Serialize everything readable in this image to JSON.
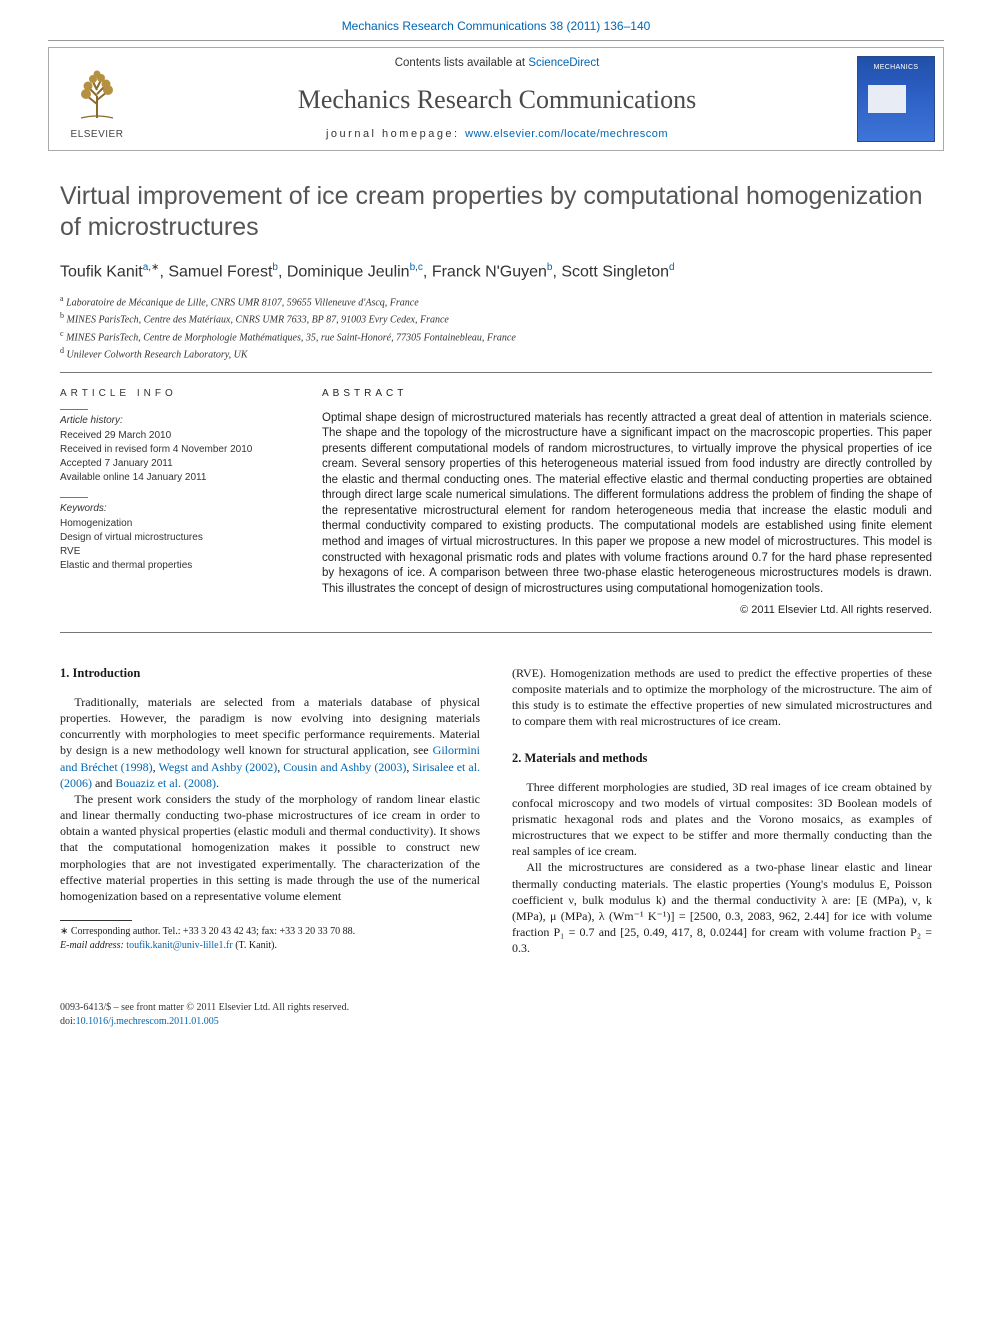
{
  "header": {
    "citation_link_text": "Mechanics Research Communications 38 (2011) 136–140",
    "contents_prefix": "Contents lists available at ",
    "contents_link": "ScienceDirect",
    "journal_name": "Mechanics Research Communications",
    "homepage_prefix": "journal homepage: ",
    "homepage_link": "www.elsevier.com/locate/mechrescom",
    "publisher_name": "ELSEVIER"
  },
  "article": {
    "title": "Virtual improvement of ice cream properties by computational homogenization of microstructures",
    "authors_html": "Toufik Kanit<sup><a>a</a>,∗</sup>, Samuel Forest<sup><a>b</a></sup>, Dominique Jeulin<sup><a>b</a>,<a>c</a></sup>, Franck N'Guyen<sup><a>b</a></sup>, Scott Singleton<sup><a>d</a></sup>",
    "affiliations": [
      {
        "sup": "a",
        "text": "Laboratoire de Mécanique de Lille, CNRS UMR 8107, 59655 Villeneuve d'Ascq, France"
      },
      {
        "sup": "b",
        "text": "MINES ParisTech, Centre des Matériaux, CNRS UMR 7633, BP 87, 91003 Evry Cedex, France"
      },
      {
        "sup": "c",
        "text": "MINES ParisTech, Centre de Morphologie Mathématiques, 35, rue Saint-Honoré, 77305 Fontainebleau, France"
      },
      {
        "sup": "d",
        "text": "Unilever Colworth Research Laboratory, UK"
      }
    ]
  },
  "info": {
    "head": "article info",
    "history_head": "Article history:",
    "history": [
      "Received 29 March 2010",
      "Received in revised form 4 November 2010",
      "Accepted 7 January 2011",
      "Available online 14 January 2011"
    ],
    "keywords_head": "Keywords:",
    "keywords": [
      "Homogenization",
      "Design of virtual microstructures",
      "RVE",
      "Elastic and thermal properties"
    ]
  },
  "abstract": {
    "head": "abstract",
    "text": "Optimal shape design of microstructured materials has recently attracted a great deal of attention in materials science. The shape and the topology of the microstructure have a significant impact on the macroscopic properties. This paper presents different computational models of random microstructures, to virtually improve the physical properties of ice cream. Several sensory properties of this heterogeneous material issued from food industry are directly controlled by the elastic and thermal conducting ones. The material effective elastic and thermal conducting properties are obtained through direct large scale numerical simulations. The different formulations address the problem of finding the shape of the representative microstructural element for random heterogeneous media that increase the elastic moduli and thermal conductivity compared to existing products. The computational models are established using finite element method and images of virtual microstructures. In this paper we propose a new model of microstructures. This model is constructed with hexagonal prismatic rods and plates with volume fractions around 0.7 for the hard phase represented by hexagons of ice. A comparison between three two-phase elastic heterogeneous microstructures models is drawn. This illustrates the concept of design of microstructures using computational homogenization tools.",
    "copyright": "© 2011 Elsevier Ltd. All rights reserved."
  },
  "body": {
    "left": {
      "sec1_head": "1. Introduction",
      "sec1_p1_pre": "Traditionally, materials are selected from a materials database of physical properties. However, the paradigm is now evolving into designing materials concurrently with morphologies to meet specific performance requirements. Material by design is a new methodology well known for structural application, see ",
      "sec1_p1_links": [
        "Gilormini and Bréchet (1998)",
        "Wegst and Ashby (2002)",
        "Cousin and Ashby (2003)",
        "Sirisalee et al. (2006)",
        "Bouaziz et al. (2008)"
      ],
      "sec1_p2": "The present work considers the study of the morphology of random linear elastic and linear thermally conducting two-phase microstructures of ice cream in order to obtain a wanted physical properties (elastic moduli and thermal conductivity). It shows that the computational homogenization makes it possible to construct new morphologies that are not investigated experimentally. The characterization of the effective material properties in this setting is made through the use of the numerical homogenization based on a representative volume element",
      "footnote_line1": "∗ Corresponding author. Tel.: +33 3 20 43 42 43; fax: +33 3 20 33 70 88.",
      "footnote_email_label": "E-mail address: ",
      "footnote_email": "toufik.kanit@univ-lille1.fr",
      "footnote_email_tail": " (T. Kanit)."
    },
    "right": {
      "p_cont": "(RVE). Homogenization methods are used to predict the effective properties of these composite materials and to optimize the morphology of the microstructure. The aim of this study is to estimate the effective properties of new simulated microstructures and to compare them with real microstructures of ice cream.",
      "sec2_head": "2. Materials and methods",
      "sec2_p1": "Three different morphologies are studied, 3D real images of ice cream obtained by confocal microscopy and two models of virtual composites: 3D Boolean models of prismatic hexagonal rods and plates and the Vorono mosaics, as examples of microstructures that we expect to be stiffer and more thermally conducting than the real samples of ice cream.",
      "sec2_p2": "All the microstructures are considered as a two-phase linear elastic and linear thermally conducting materials. The elastic properties (Young's modulus E, Poisson coefficient ν, bulk modulus k) and the thermal conductivity λ are: [E (MPa), ν, k (MPa), μ (MPa), λ (Wm⁻¹ K⁻¹)] = [2500, 0.3, 2083, 962, 2.44] for ice with volume fraction P₁ = 0.7 and [25, 0.49, 417, 8, 0.0244] for cream with volume fraction P₂ = 0.3."
    }
  },
  "footer": {
    "line1": "0093-6413/$ – see front matter © 2011 Elsevier Ltd. All rights reserved.",
    "doi_label": "doi:",
    "doi_link": "10.1016/j.mechrescom.2011.01.005"
  },
  "colors": {
    "link": "#0066b3",
    "body_text": "#1a1a1a",
    "title_gray": "#555555",
    "rule": "#777777"
  }
}
